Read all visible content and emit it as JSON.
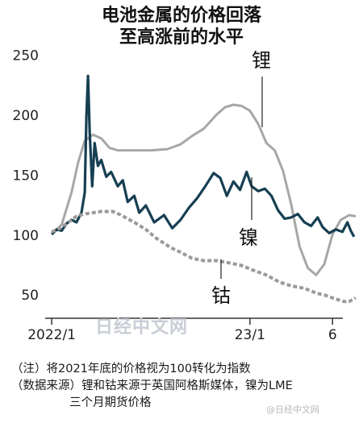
{
  "titles": {
    "line1": "电池金属的价格回落",
    "line2": "至高涨前的水平"
  },
  "notes": {
    "line1": "（注）将2021年底的价格视为100转化为指数",
    "line2": "（数据来源）锂和钴来源于英国阿格斯媒体，镍为LME",
    "line3": "三个月期货价格"
  },
  "watermarks": {
    "main": "日经中文网",
    "corner": "@日经中文网"
  },
  "colors": {
    "lithium": "#a7a7a7",
    "nickel": "#163f52",
    "cobalt": "#9b9b9b",
    "axis": "#333333"
  },
  "chart_data": {
    "type": "line",
    "ylim": [
      30,
      255
    ],
    "y_ticks": [
      50,
      100,
      150,
      200,
      250
    ],
    "x_tick_labels": [
      "2022/1",
      "23/1",
      "6"
    ],
    "x_tick_values": [
      0,
      12,
      17
    ],
    "xlim": [
      -0.2,
      18.6
    ],
    "series": [
      {
        "name": "锂",
        "line_style": "solid",
        "points": [
          [
            0,
            100
          ],
          [
            0.6,
            108
          ],
          [
            1.2,
            135
          ],
          [
            1.6,
            160
          ],
          [
            2.0,
            178
          ],
          [
            2.5,
            183
          ],
          [
            3.0,
            180
          ],
          [
            3.5,
            172
          ],
          [
            4,
            170
          ],
          [
            5,
            170
          ],
          [
            6,
            170
          ],
          [
            7,
            171
          ],
          [
            7.8,
            175
          ],
          [
            8.5,
            182
          ],
          [
            9.2,
            188
          ],
          [
            10,
            200
          ],
          [
            10.5,
            206
          ],
          [
            11,
            208
          ],
          [
            11.5,
            207
          ],
          [
            12,
            203
          ],
          [
            12.5,
            192
          ],
          [
            13.0,
            176
          ],
          [
            13.5,
            170
          ],
          [
            14.0,
            153
          ],
          [
            14.5,
            125
          ],
          [
            15,
            90
          ],
          [
            15.5,
            72
          ],
          [
            16,
            66
          ],
          [
            16.5,
            75
          ],
          [
            17,
            100
          ],
          [
            17.5,
            112
          ],
          [
            18,
            116
          ],
          [
            18.4,
            115
          ]
        ]
      },
      {
        "name": "镍",
        "line_style": "solid",
        "points": [
          [
            0,
            100
          ],
          [
            0.3,
            104
          ],
          [
            0.6,
            103
          ],
          [
            0.9,
            109
          ],
          [
            1.2,
            112
          ],
          [
            1.5,
            110
          ],
          [
            1.8,
            118
          ],
          [
            2.0,
            135
          ],
          [
            2.1,
            198
          ],
          [
            2.2,
            232
          ],
          [
            2.3,
            185
          ],
          [
            2.45,
            140
          ],
          [
            2.6,
            176
          ],
          [
            2.8,
            157
          ],
          [
            3.0,
            162
          ],
          [
            3.3,
            148
          ],
          [
            3.6,
            152
          ],
          [
            4.0,
            140
          ],
          [
            4.3,
            145
          ],
          [
            4.6,
            127
          ],
          [
            5.0,
            132
          ],
          [
            5.3,
            118
          ],
          [
            5.7,
            124
          ],
          [
            6.2,
            110
          ],
          [
            6.8,
            116
          ],
          [
            7.3,
            105
          ],
          [
            7.8,
            112
          ],
          [
            8.3,
            122
          ],
          [
            8.8,
            130
          ],
          [
            9.3,
            140
          ],
          [
            9.8,
            151
          ],
          [
            10.2,
            147
          ],
          [
            10.6,
            132
          ],
          [
            11,
            144
          ],
          [
            11.4,
            137
          ],
          [
            11.8,
            152
          ],
          [
            12.1,
            140
          ],
          [
            12.5,
            136
          ],
          [
            12.9,
            138
          ],
          [
            13.3,
            132
          ],
          [
            13.7,
            120
          ],
          [
            14.1,
            113
          ],
          [
            14.5,
            114
          ],
          [
            14.9,
            117
          ],
          [
            15.3,
            110
          ],
          [
            15.7,
            107
          ],
          [
            16.1,
            114
          ],
          [
            16.4,
            106
          ],
          [
            16.8,
            101
          ],
          [
            17.2,
            104
          ],
          [
            17.6,
            102
          ],
          [
            17.9,
            110
          ],
          [
            18.1,
            103
          ],
          [
            18.3,
            98
          ]
        ]
      },
      {
        "name": "钴",
        "line_style": "dashed",
        "points": [
          [
            0,
            102
          ],
          [
            0.5,
            105
          ],
          [
            1,
            110
          ],
          [
            1.5,
            115
          ],
          [
            2,
            117
          ],
          [
            3,
            119
          ],
          [
            3.7,
            119
          ],
          [
            4.2,
            116
          ],
          [
            5,
            110
          ],
          [
            5.7,
            104
          ],
          [
            6.3,
            97
          ],
          [
            7.2,
            89
          ],
          [
            7.8,
            85
          ],
          [
            8.5,
            80
          ],
          [
            9.2,
            78
          ],
          [
            10,
            78
          ],
          [
            10.8,
            76
          ],
          [
            11.5,
            74
          ],
          [
            12.2,
            70
          ],
          [
            13,
            66
          ],
          [
            13.8,
            60
          ],
          [
            14.5,
            57
          ],
          [
            15.3,
            55
          ],
          [
            16,
            51
          ],
          [
            16.6,
            49
          ],
          [
            17.2,
            46
          ],
          [
            17.7,
            44
          ],
          [
            18.0,
            44
          ],
          [
            18.4,
            47
          ]
        ]
      }
    ],
    "series_labels": [
      {
        "text": "锂",
        "series": "锂"
      },
      {
        "text": "镍",
        "series": "镍"
      },
      {
        "text": "钴",
        "series": "钴"
      }
    ]
  }
}
